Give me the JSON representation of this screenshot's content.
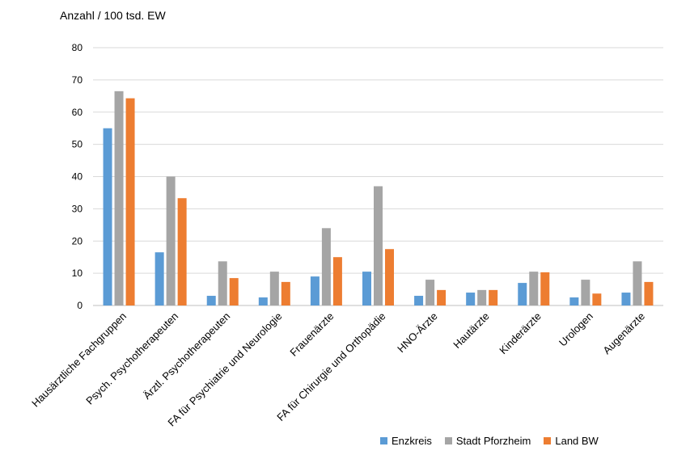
{
  "chart_data": {
    "type": "bar",
    "title": "",
    "ylabel": "Anzahl / 100 tsd. EW",
    "xlabel": "",
    "ylim": [
      0,
      80
    ],
    "yticks": [
      0,
      10,
      20,
      30,
      40,
      50,
      60,
      70,
      80
    ],
    "grid": true,
    "legend_position": "bottom-right",
    "categories": [
      "Hausärztliche Fachgruppen",
      "Psych. Psychotherapeuten",
      "Ärztl. Psychotherapeuten",
      "FA für Psychiatrie und Neurologie",
      "Frauenärzte",
      "FA für Chirurgie und Orthopädie",
      "HNO-Ärzte",
      "Hautärzte",
      "Kinderärzte",
      "Urologen",
      "Augenärzte"
    ],
    "series": [
      {
        "name": "Enzkreis",
        "color": "#5b9bd5",
        "values": [
          55,
          16.5,
          3,
          2.5,
          9,
          10.5,
          3,
          4,
          7,
          2.5,
          4
        ]
      },
      {
        "name": "Stadt Pforzheim",
        "color": "#a5a5a5",
        "values": [
          66.5,
          40,
          13.7,
          10.5,
          24,
          37,
          8,
          4.8,
          10.5,
          8,
          13.7
        ]
      },
      {
        "name": "Land BW",
        "color": "#ed7d31",
        "values": [
          64.3,
          33.3,
          8.5,
          7.3,
          15,
          17.5,
          4.8,
          4.8,
          10.3,
          3.7,
          7.3
        ]
      }
    ]
  }
}
